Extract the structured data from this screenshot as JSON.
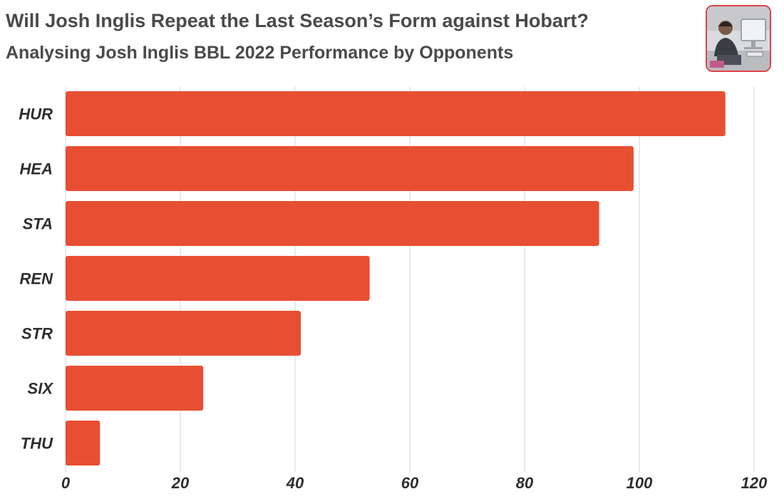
{
  "header": {
    "title": "Will Josh Inglis Repeat the Last Season’s Form against Hobart?",
    "subtitle": "Analysing Josh Inglis BBL 2022 Performance by Opponents"
  },
  "photo": {
    "icon": "person-at-computer-photo"
  },
  "colors": {
    "bar": "#e84f32",
    "grid": "#e3e3e3",
    "text": "#2e2e2e",
    "photo_border": "#e1424a"
  },
  "chart_data": {
    "type": "bar",
    "orientation": "horizontal",
    "title": "Will Josh Inglis Repeat the Last Season’s Form against Hobart?",
    "subtitle": "Analysing Josh Inglis BBL 2022 Performance by Opponents",
    "categories": [
      "HUR",
      "HEA",
      "STA",
      "REN",
      "STR",
      "SIX",
      "THU"
    ],
    "values": [
      115,
      99,
      93,
      53,
      41,
      24,
      6
    ],
    "xlim": [
      0,
      120
    ],
    "xticks": [
      0,
      20,
      40,
      60,
      80,
      100,
      120
    ],
    "grid": true,
    "legend": "none"
  }
}
